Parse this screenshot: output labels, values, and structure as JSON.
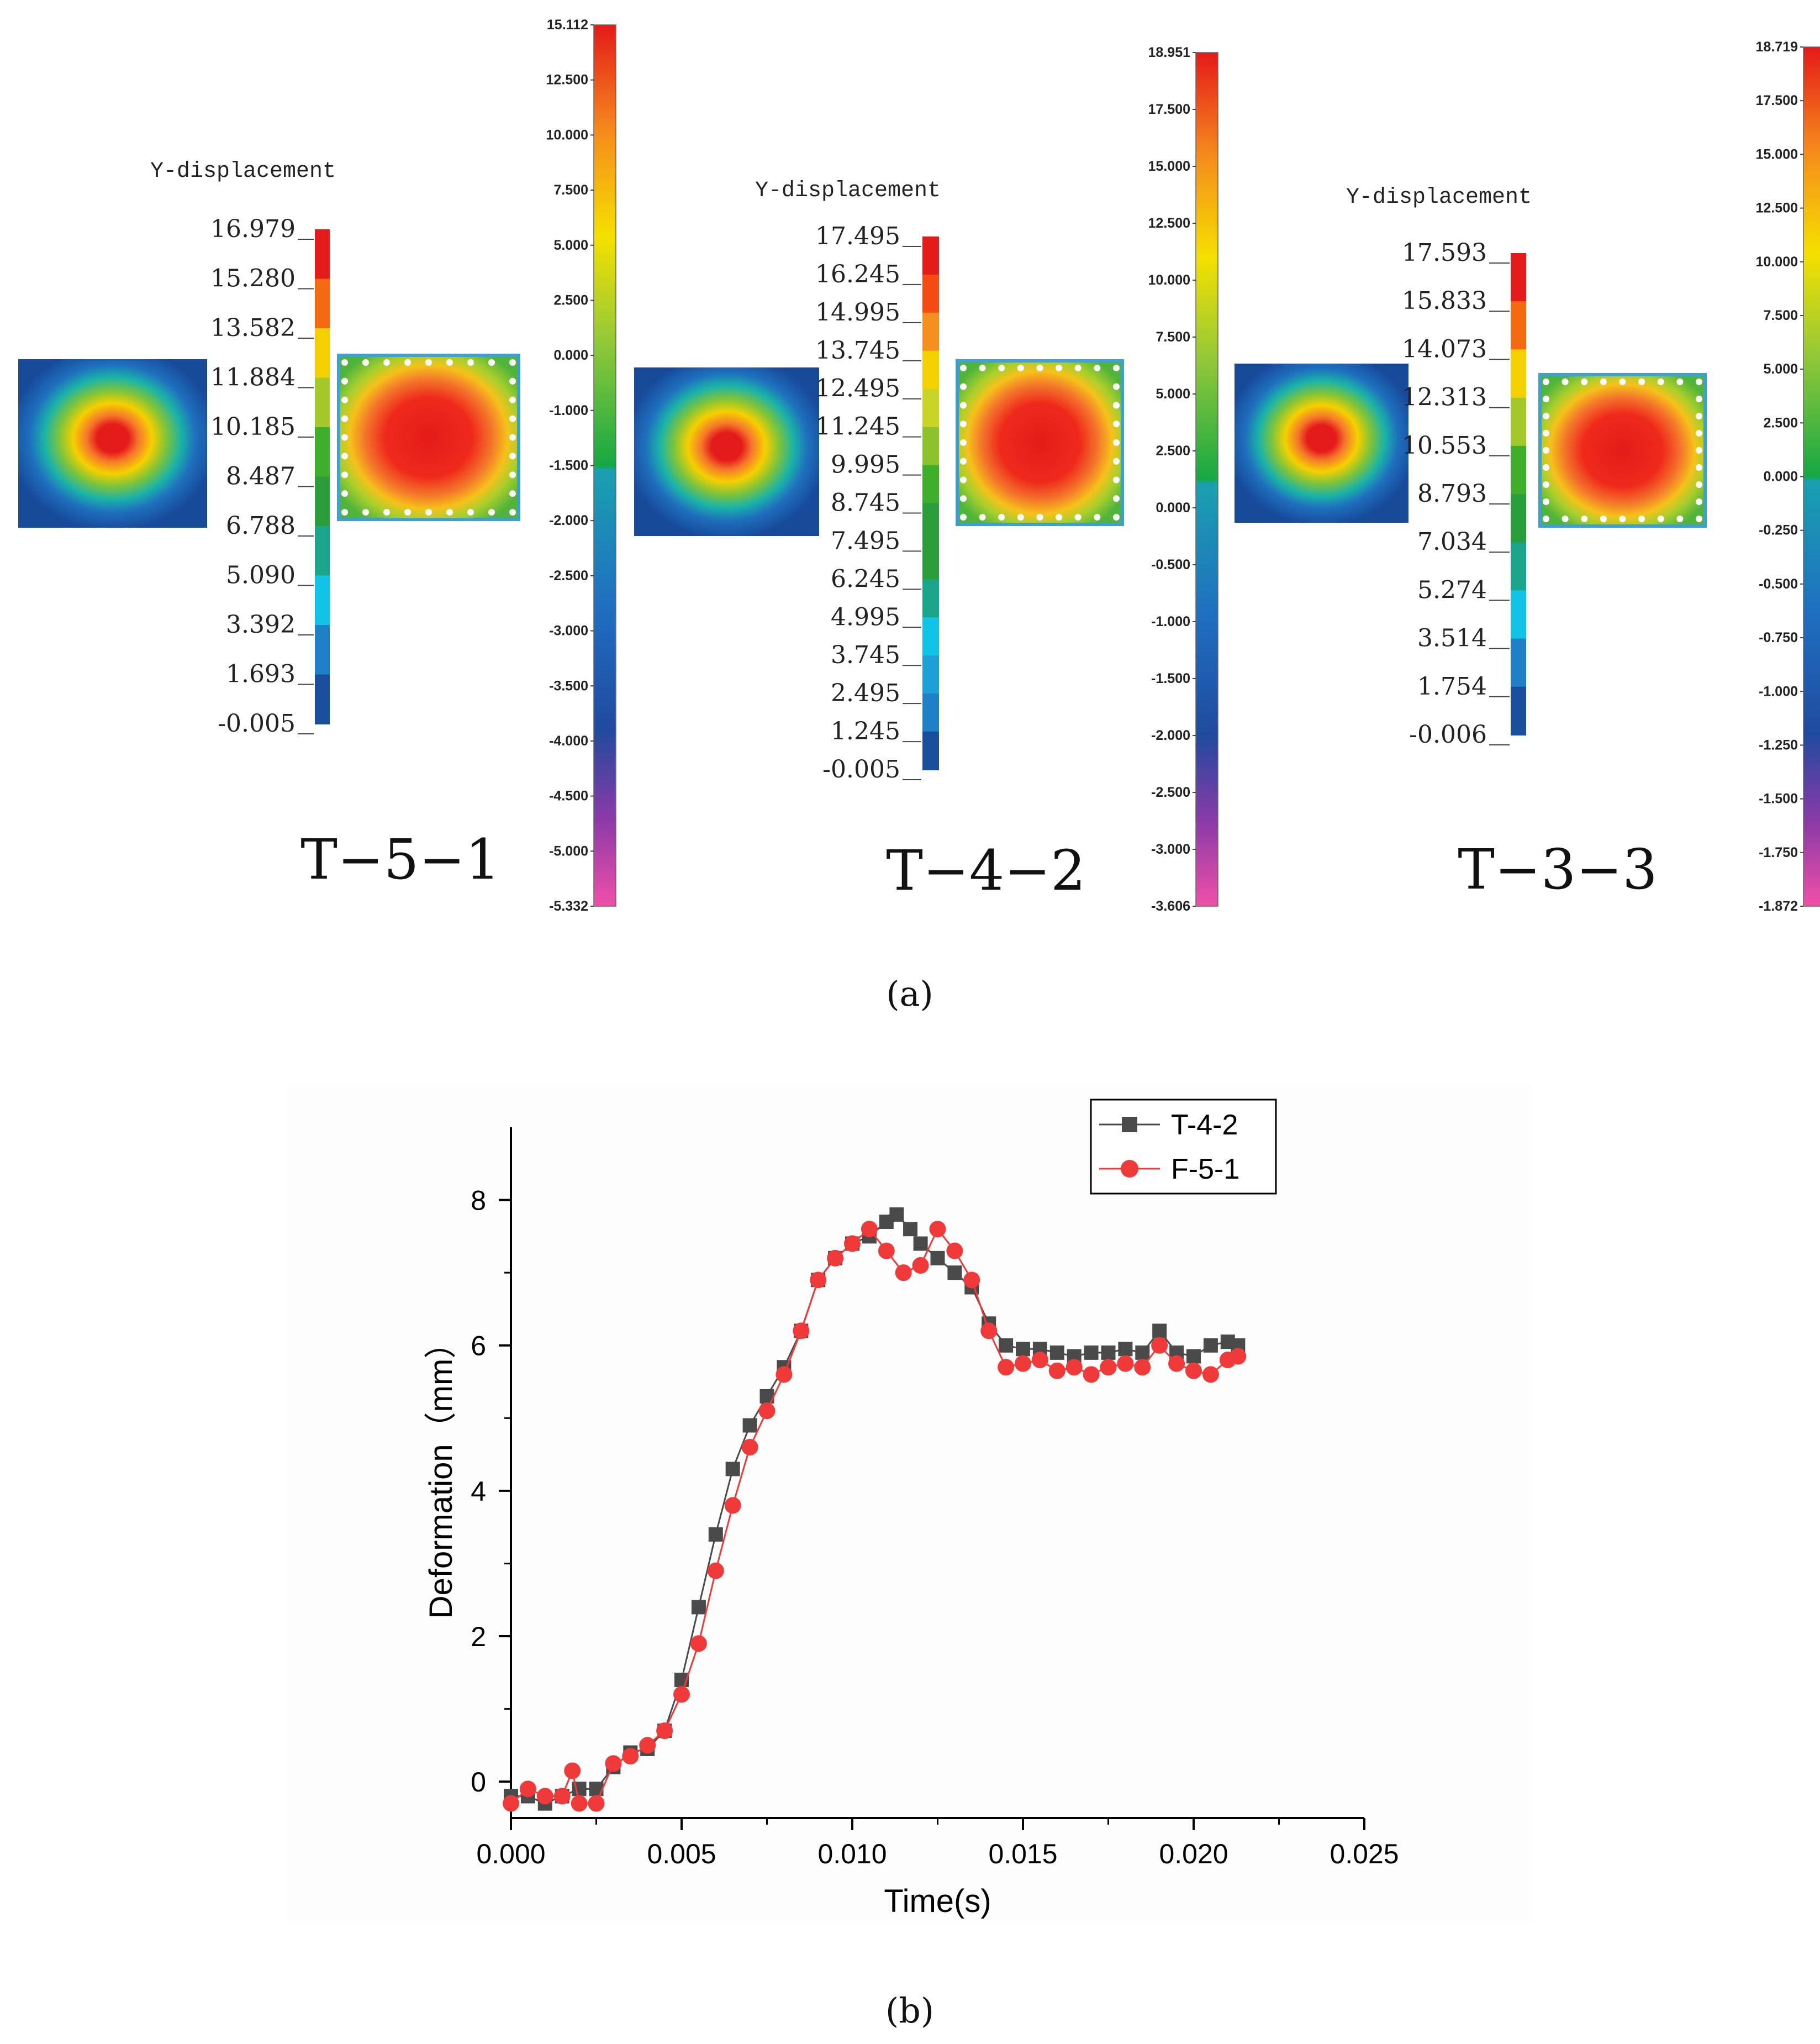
{
  "panel_a": {
    "caption": "(a)",
    "cases": [
      {
        "name": "T−5−1",
        "ydisp_title": "Y-displacement",
        "ydisp_scale": [
          "16.979",
          "15.280",
          "13.582",
          "11.884",
          "10.185",
          "8.487",
          "6.788",
          "5.090",
          "3.392",
          "1.693",
          "-0.005"
        ],
        "ydisp_colors": [
          "#e51a1a",
          "#f56a10",
          "#f5d000",
          "#a3c82a",
          "#3fae2a",
          "#2a9e3a",
          "#1aa58a",
          "#12c3e8",
          "#1f80c8",
          "#1a4f9e"
        ],
        "fringe_scale": [
          "15.112",
          "12.500",
          "10.000",
          "7.500",
          "5.000",
          "2.500",
          "0.000",
          "-1.000",
          "-1.500",
          "-2.000",
          "-2.500",
          "-3.000",
          "-3.500",
          "-4.000",
          "-4.500",
          "-5.000",
          "-5.332"
        ]
      },
      {
        "name": "T−4−2",
        "ydisp_title": "Y-displacement",
        "ydisp_scale": [
          "17.495",
          "16.245",
          "14.995",
          "13.745",
          "12.495",
          "11.245",
          "9.995",
          "8.745",
          "7.495",
          "6.245",
          "4.995",
          "3.745",
          "2.495",
          "1.245",
          "-0.005"
        ],
        "ydisp_colors": [
          "#e51a1a",
          "#f54a12",
          "#f59020",
          "#f5d000",
          "#c8d428",
          "#8cc22c",
          "#3fae2a",
          "#2a9e3a",
          "#2a9e3a",
          "#1aa58a",
          "#12c3e8",
          "#1ea0d6",
          "#1f80c8",
          "#1a4f9e"
        ],
        "fringe_scale": [
          "18.951",
          "17.500",
          "15.000",
          "12.500",
          "10.000",
          "7.500",
          "5.000",
          "2.500",
          "0.000",
          "-0.500",
          "-1.000",
          "-1.500",
          "-2.000",
          "-2.500",
          "-3.000",
          "-3.606"
        ]
      },
      {
        "name": "T−3−3",
        "ydisp_title": "Y-displacement",
        "ydisp_scale": [
          "17.593",
          "15.833",
          "14.073",
          "12.313",
          "10.553",
          "8.793",
          "7.034",
          "5.274",
          "3.514",
          "1.754",
          "-0.006"
        ],
        "ydisp_colors": [
          "#e51a1a",
          "#f56a10",
          "#f5d000",
          "#a3c82a",
          "#3fae2a",
          "#2a9e3a",
          "#1aa58a",
          "#12c3e8",
          "#1f80c8",
          "#1a4f9e"
        ],
        "fringe_scale": [
          "18.719",
          "17.500",
          "15.000",
          "12.500",
          "10.000",
          "7.500",
          "5.000",
          "2.500",
          "0.000",
          "-0.250",
          "-0.500",
          "-0.750",
          "-1.000",
          "-1.250",
          "-1.500",
          "-1.750",
          "-1.872"
        ]
      }
    ]
  },
  "panel_b": {
    "caption": "(b)"
  },
  "chart_data": {
    "type": "line",
    "title": "",
    "xlabel": "Time(s)",
    "ylabel": "Deformation（mm）",
    "xlim": [
      0,
      0.025
    ],
    "ylim": [
      -0.5,
      9
    ],
    "xticks": [
      "0.000",
      "0.005",
      "0.010",
      "0.015",
      "0.020",
      "0.025"
    ],
    "xtick_values": [
      0,
      0.005,
      0.01,
      0.015,
      0.02,
      0.025
    ],
    "yticks": [
      "0",
      "2",
      "4",
      "6",
      "8"
    ],
    "ytick_values": [
      0,
      2,
      4,
      6,
      8
    ],
    "legend_position": "top-right",
    "series": [
      {
        "name": "T-4-2",
        "color": "#4a4a4a",
        "marker": "square",
        "x": [
          0.0,
          0.0005,
          0.001,
          0.0015,
          0.002,
          0.0025,
          0.003,
          0.0035,
          0.004,
          0.0045,
          0.005,
          0.0055,
          0.006,
          0.0065,
          0.007,
          0.0075,
          0.008,
          0.0085,
          0.009,
          0.0095,
          0.01,
          0.0105,
          0.011,
          0.0113,
          0.0117,
          0.012,
          0.0125,
          0.013,
          0.0135,
          0.014,
          0.0145,
          0.015,
          0.0155,
          0.016,
          0.0165,
          0.017,
          0.0175,
          0.018,
          0.0185,
          0.019,
          0.0195,
          0.02,
          0.0205,
          0.021,
          0.0213
        ],
        "y": [
          -0.2,
          -0.2,
          -0.3,
          -0.2,
          -0.1,
          -0.1,
          0.2,
          0.4,
          0.45,
          0.7,
          1.4,
          2.4,
          3.4,
          4.3,
          4.9,
          5.3,
          5.7,
          6.2,
          6.9,
          7.2,
          7.4,
          7.5,
          7.7,
          7.8,
          7.6,
          7.4,
          7.2,
          7.0,
          6.8,
          6.3,
          6.0,
          5.95,
          5.95,
          5.9,
          5.85,
          5.9,
          5.9,
          5.95,
          5.9,
          6.2,
          5.9,
          5.85,
          6.0,
          6.05,
          6.0
        ]
      },
      {
        "name": "F-5-1",
        "color": "#f03a3a",
        "marker": "circle",
        "x": [
          0.0,
          0.0005,
          0.001,
          0.0015,
          0.0018,
          0.002,
          0.0025,
          0.003,
          0.0035,
          0.004,
          0.0045,
          0.005,
          0.0055,
          0.006,
          0.0065,
          0.007,
          0.0075,
          0.008,
          0.0085,
          0.009,
          0.0095,
          0.01,
          0.0105,
          0.011,
          0.0115,
          0.012,
          0.0125,
          0.013,
          0.0135,
          0.014,
          0.0145,
          0.015,
          0.0155,
          0.016,
          0.0165,
          0.017,
          0.0175,
          0.018,
          0.0185,
          0.019,
          0.0195,
          0.02,
          0.0205,
          0.021,
          0.0213
        ],
        "y": [
          -0.3,
          -0.1,
          -0.2,
          -0.2,
          0.15,
          -0.3,
          -0.3,
          0.25,
          0.35,
          0.5,
          0.7,
          1.2,
          1.9,
          2.9,
          3.8,
          4.6,
          5.1,
          5.6,
          6.2,
          6.9,
          7.2,
          7.4,
          7.6,
          7.3,
          7.0,
          7.1,
          7.6,
          7.3,
          6.9,
          6.2,
          5.7,
          5.75,
          5.8,
          5.65,
          5.7,
          5.6,
          5.7,
          5.75,
          5.7,
          6.0,
          5.75,
          5.65,
          5.6,
          5.8,
          5.85
        ]
      }
    ]
  }
}
